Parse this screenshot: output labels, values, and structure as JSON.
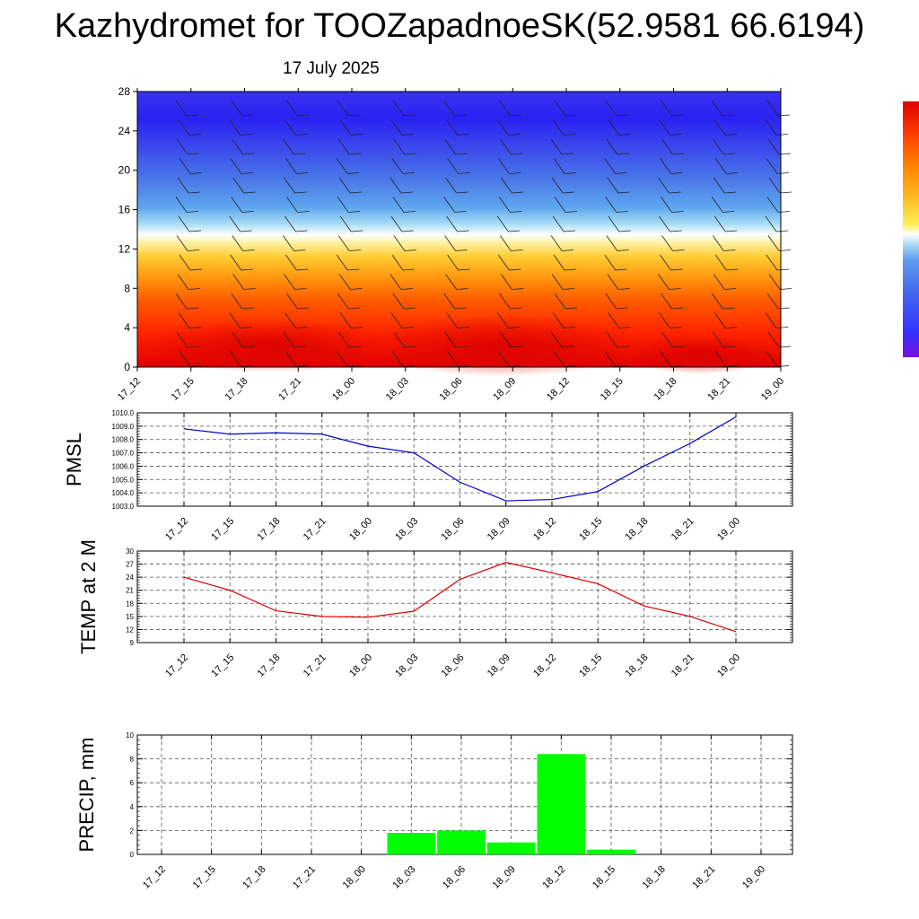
{
  "header": {
    "title": "Kazhydromet for TOOZapadnoeSK(52.9581 66.6194)",
    "date": "17 July 2025"
  },
  "time_labels": [
    "17_12",
    "17_15",
    "17_18",
    "17_21",
    "18_00",
    "18_03",
    "18_06",
    "18_09",
    "18_12",
    "18_15",
    "18_18",
    "18_21",
    "19_00"
  ],
  "chart_data": [
    {
      "type": "heatmap",
      "title": "",
      "xlabel": "",
      "ylabel": "",
      "x": [
        "17_12",
        "17_15",
        "17_18",
        "17_21",
        "18_00",
        "18_03",
        "18_06",
        "18_09",
        "18_12",
        "18_15",
        "18_18",
        "18_21",
        "19_00"
      ],
      "yticks": [
        0,
        4,
        8,
        12,
        16,
        20,
        24,
        28
      ],
      "ylim": [
        0,
        28
      ],
      "colorbar": [
        "#7a12e0",
        "#3333ff",
        "#4466ee",
        "#5e9ef0",
        "#aad8f5",
        "#ffffff",
        "#ffee55",
        "#ffbb22",
        "#ff8800",
        "#ff4400",
        "#e00000"
      ],
      "wind_barbs": true
    },
    {
      "type": "line",
      "ylabel": "PMSL",
      "x": [
        "17_12",
        "17_15",
        "17_18",
        "17_21",
        "18_00",
        "18_03",
        "18_06",
        "18_09",
        "18_12",
        "18_15",
        "18_18",
        "18_21",
        "19_00"
      ],
      "values": [
        1008.8,
        1008.4,
        1008.5,
        1008.4,
        1007.5,
        1007.0,
        1004.8,
        1003.4,
        1003.5,
        1004.1,
        1006.0,
        1007.7,
        1009.7
      ],
      "ylim": [
        1003.0,
        1010.0
      ],
      "yticks": [
        "1003.0",
        "1004.0",
        "1005.0",
        "1006.0",
        "1007.0",
        "1008.0",
        "1009.0",
        "1010.0"
      ],
      "color": "#0000cc",
      "grid": true
    },
    {
      "type": "line",
      "ylabel": "TEMP at 2 M",
      "x": [
        "17_12",
        "17_15",
        "17_18",
        "17_21",
        "18_00",
        "18_03",
        "18_06",
        "18_09",
        "18_12",
        "18_15",
        "18_18",
        "18_21",
        "19_00"
      ],
      "values": [
        24.0,
        21.0,
        16.3,
        15.0,
        14.8,
        16.2,
        23.5,
        27.4,
        25.0,
        22.5,
        17.4,
        15.0,
        11.5
      ],
      "ylim": [
        9,
        30
      ],
      "yticks": [
        "9",
        "12",
        "15",
        "18",
        "21",
        "24",
        "27",
        "30"
      ],
      "color": "#e00000",
      "grid": true
    },
    {
      "type": "bar",
      "ylabel": "PRECIP, mm",
      "categories": [
        "17_12",
        "17_15",
        "17_18",
        "17_21",
        "18_00",
        "18_03",
        "18_06",
        "18_09",
        "18_12",
        "18_15",
        "18_18",
        "18_21",
        "19_00"
      ],
      "values": [
        0,
        0,
        0,
        0,
        0,
        1.8,
        2.0,
        1.0,
        8.4,
        0.4,
        0,
        0,
        0
      ],
      "ylim": [
        0,
        10
      ],
      "yticks": [
        "0",
        "2",
        "4",
        "6",
        "8",
        "10"
      ],
      "color": "#00ff00",
      "grid": true
    }
  ]
}
